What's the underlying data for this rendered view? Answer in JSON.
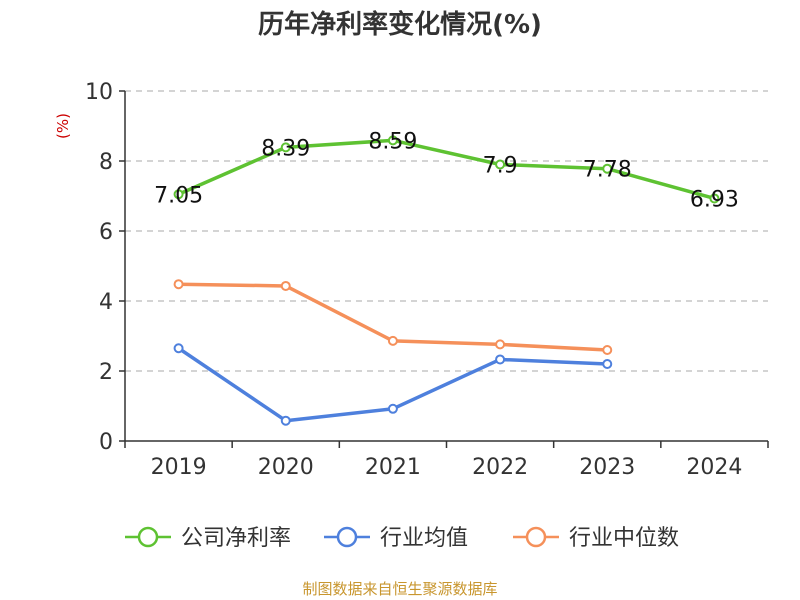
{
  "chart_data": {
    "type": "line",
    "title": "历年净利率变化情况(%)",
    "ylabel": "(%)",
    "xlabel": "",
    "categories": [
      "2019",
      "2020",
      "2021",
      "2022",
      "2023",
      "2024"
    ],
    "ylim": [
      0,
      10
    ],
    "yticks": [
      "0",
      "2",
      "4",
      "6",
      "8",
      "10"
    ],
    "grid": true,
    "legend_position": "bottom",
    "series": [
      {
        "name": "公司净利率",
        "color": "#5ec232",
        "show_labels": true,
        "values": [
          7.05,
          8.39,
          8.59,
          7.9,
          7.78,
          6.93
        ],
        "labels": [
          "7.05",
          "8.39",
          "8.59",
          "7.9",
          "7.78",
          "6.93"
        ]
      },
      {
        "name": "行业均值",
        "color": "#4e80dd",
        "show_labels": false,
        "values": [
          2.65,
          0.58,
          0.92,
          2.33,
          2.2,
          null
        ],
        "labels": []
      },
      {
        "name": "行业中位数",
        "color": "#f5905a",
        "show_labels": false,
        "values": [
          4.48,
          4.43,
          2.86,
          2.76,
          2.6,
          null
        ],
        "labels": []
      }
    ]
  },
  "footer": {
    "source": "制图数据来自恒生聚源数据库"
  }
}
